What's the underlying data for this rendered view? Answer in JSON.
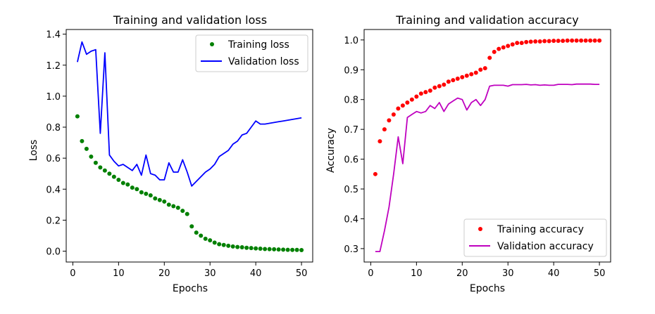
{
  "chart_data": [
    {
      "type": "line",
      "title": "Training and validation loss",
      "xlabel": "Epochs",
      "ylabel": "Loss",
      "xlim": [
        -1.45,
        52.45
      ],
      "ylim": [
        -0.07,
        1.43
      ],
      "xticks": [
        0,
        10,
        20,
        30,
        40,
        50
      ],
      "xtick_labels": [
        "0",
        "10",
        "20",
        "30",
        "40",
        "50"
      ],
      "yticks": [
        0.0,
        0.2,
        0.4,
        0.6,
        0.8,
        1.0,
        1.2,
        1.4
      ],
      "ytick_labels": [
        "0.0",
        "0.2",
        "0.4",
        "0.6",
        "0.8",
        "1.0",
        "1.2",
        "1.4"
      ],
      "legend_position": "top-right",
      "series": [
        {
          "name": "Training loss",
          "style": "dots",
          "color": "#008000",
          "x": [
            1,
            2,
            3,
            4,
            5,
            6,
            7,
            8,
            9,
            10,
            11,
            12,
            13,
            14,
            15,
            16,
            17,
            18,
            19,
            20,
            21,
            22,
            23,
            24,
            25,
            26,
            27,
            28,
            29,
            30,
            31,
            32,
            33,
            34,
            35,
            36,
            37,
            38,
            39,
            40,
            41,
            42,
            43,
            44,
            45,
            46,
            47,
            48,
            49,
            50
          ],
          "values": [
            0.87,
            0.71,
            0.66,
            0.61,
            0.57,
            0.54,
            0.52,
            0.5,
            0.48,
            0.46,
            0.44,
            0.43,
            0.41,
            0.4,
            0.38,
            0.37,
            0.36,
            0.34,
            0.33,
            0.32,
            0.3,
            0.29,
            0.28,
            0.26,
            0.24,
            0.16,
            0.12,
            0.1,
            0.08,
            0.07,
            0.055,
            0.045,
            0.04,
            0.035,
            0.03,
            0.027,
            0.025,
            0.022,
            0.02,
            0.018,
            0.016,
            0.014,
            0.013,
            0.012,
            0.011,
            0.01,
            0.009,
            0.008,
            0.008,
            0.007
          ]
        },
        {
          "name": "Validation loss",
          "style": "line",
          "color": "#0000ff",
          "x": [
            1,
            2,
            3,
            4,
            5,
            6,
            7,
            8,
            9,
            10,
            11,
            12,
            13,
            14,
            15,
            16,
            17,
            18,
            19,
            20,
            21,
            22,
            23,
            24,
            25,
            26,
            27,
            28,
            29,
            30,
            31,
            32,
            33,
            34,
            35,
            36,
            37,
            38,
            39,
            40,
            41,
            42,
            43,
            44,
            45,
            46,
            47,
            48,
            49,
            50
          ],
          "values": [
            1.22,
            1.35,
            1.27,
            1.29,
            1.3,
            0.76,
            1.28,
            0.62,
            0.58,
            0.55,
            0.56,
            0.54,
            0.52,
            0.56,
            0.49,
            0.62,
            0.5,
            0.49,
            0.46,
            0.46,
            0.57,
            0.51,
            0.51,
            0.59,
            0.51,
            0.42,
            0.45,
            0.48,
            0.51,
            0.53,
            0.56,
            0.61,
            0.63,
            0.65,
            0.69,
            0.71,
            0.75,
            0.76,
            0.8,
            0.84,
            0.82,
            0.82,
            0.825,
            0.83,
            0.835,
            0.84,
            0.845,
            0.85,
            0.855,
            0.86
          ]
        }
      ]
    },
    {
      "type": "line",
      "title": "Training and validation accuracy",
      "xlabel": "Epochs",
      "ylabel": "Accuracy",
      "xlim": [
        -1.45,
        52.45
      ],
      "ylim": [
        0.255,
        1.035
      ],
      "xticks": [
        0,
        10,
        20,
        30,
        40,
        50
      ],
      "xtick_labels": [
        "0",
        "10",
        "20",
        "30",
        "40",
        "50"
      ],
      "yticks": [
        0.3,
        0.4,
        0.5,
        0.6,
        0.7,
        0.8,
        0.9,
        1.0
      ],
      "ytick_labels": [
        "0.3",
        "0.4",
        "0.5",
        "0.6",
        "0.7",
        "0.8",
        "0.9",
        "1.0"
      ],
      "legend_position": "bottom-right",
      "series": [
        {
          "name": "Training accuracy",
          "style": "dots",
          "color": "#ff0000",
          "x": [
            1,
            2,
            3,
            4,
            5,
            6,
            7,
            8,
            9,
            10,
            11,
            12,
            13,
            14,
            15,
            16,
            17,
            18,
            19,
            20,
            21,
            22,
            23,
            24,
            25,
            26,
            27,
            28,
            29,
            30,
            31,
            32,
            33,
            34,
            35,
            36,
            37,
            38,
            39,
            40,
            41,
            42,
            43,
            44,
            45,
            46,
            47,
            48,
            49,
            50
          ],
          "values": [
            0.55,
            0.66,
            0.7,
            0.73,
            0.75,
            0.77,
            0.78,
            0.79,
            0.8,
            0.81,
            0.82,
            0.825,
            0.83,
            0.84,
            0.845,
            0.85,
            0.86,
            0.865,
            0.87,
            0.875,
            0.88,
            0.885,
            0.89,
            0.9,
            0.905,
            0.94,
            0.96,
            0.97,
            0.975,
            0.98,
            0.985,
            0.99,
            0.99,
            0.993,
            0.994,
            0.995,
            0.995,
            0.996,
            0.996,
            0.997,
            0.997,
            0.997,
            0.998,
            0.998,
            0.998,
            0.998,
            0.998,
            0.998,
            0.998,
            0.998
          ]
        },
        {
          "name": "Validation accuracy",
          "style": "line",
          "color": "#bf00bf",
          "x": [
            1,
            2,
            3,
            4,
            5,
            6,
            7,
            8,
            9,
            10,
            11,
            12,
            13,
            14,
            15,
            16,
            17,
            18,
            19,
            20,
            21,
            22,
            23,
            24,
            25,
            26,
            27,
            28,
            29,
            30,
            31,
            32,
            33,
            34,
            35,
            36,
            37,
            38,
            39,
            40,
            41,
            42,
            43,
            44,
            45,
            46,
            47,
            48,
            49,
            50
          ],
          "values": [
            0.29,
            0.29,
            0.36,
            0.44,
            0.55,
            0.675,
            0.585,
            0.74,
            0.75,
            0.76,
            0.755,
            0.76,
            0.78,
            0.77,
            0.79,
            0.76,
            0.785,
            0.795,
            0.805,
            0.8,
            0.765,
            0.79,
            0.8,
            0.78,
            0.8,
            0.845,
            0.848,
            0.848,
            0.848,
            0.845,
            0.85,
            0.85,
            0.85,
            0.851,
            0.849,
            0.85,
            0.848,
            0.849,
            0.848,
            0.848,
            0.851,
            0.851,
            0.851,
            0.85,
            0.852,
            0.852,
            0.852,
            0.852,
            0.851,
            0.851
          ]
        }
      ]
    }
  ]
}
